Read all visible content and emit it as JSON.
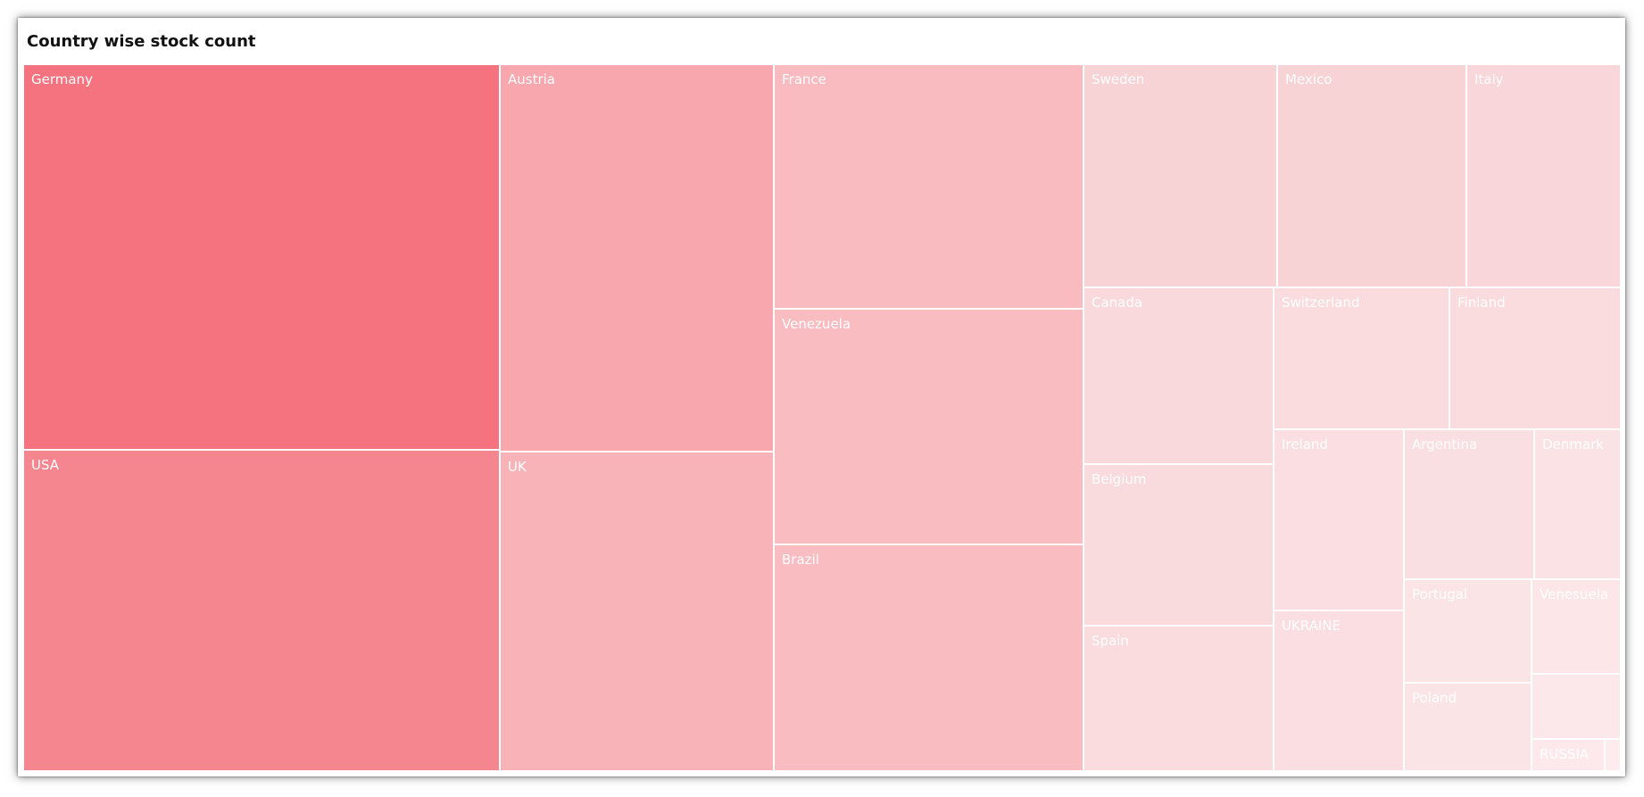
{
  "chart_data": {
    "type": "treemap",
    "title": "Country wise stock count",
    "label_color": "#ffffff",
    "items": [
      {
        "name": "Germany",
        "label": "Germany",
        "value": 1642,
        "color": "#f4737f"
      },
      {
        "name": "USA",
        "label": "USA",
        "value": 1414,
        "color": "#f58690"
      },
      {
        "name": "Austria",
        "label": "Austria",
        "value": 953,
        "color": "#f7a7ad"
      },
      {
        "name": "UK",
        "label": "UK",
        "value": 799,
        "color": "#f8b3b8"
      },
      {
        "name": "France",
        "label": "France",
        "value": 671,
        "color": "#f9bbc0"
      },
      {
        "name": "Venezuela",
        "label": "Venezuela",
        "value": 653,
        "color": "#f9bcc1"
      },
      {
        "name": "Brazil",
        "label": "Brazil",
        "value": 645,
        "color": "#f9bcc1"
      },
      {
        "name": "Sweden",
        "label": "Sweden",
        "value": 189,
        "color": "#f8d3d6"
      },
      {
        "name": "Mexico",
        "label": "Mexico",
        "value": 187,
        "color": "#f8d3d6"
      },
      {
        "name": "Italy",
        "label": "Italy",
        "value": 149,
        "color": "#f9d6d9"
      },
      {
        "name": "Canada",
        "label": "Canada",
        "value": 150,
        "color": "#f9d9dc"
      },
      {
        "name": "Switzerland",
        "label": "Switzerland",
        "value": 110,
        "color": "#fadcdf"
      },
      {
        "name": "Finland",
        "label": "Finland",
        "value": 108,
        "color": "#fadcdf"
      },
      {
        "name": "Belgium",
        "label": "Belgium",
        "value": 137,
        "color": "#f9dadd"
      },
      {
        "name": "Spain",
        "label": "Spain",
        "value": 127,
        "color": "#fadcdf"
      },
      {
        "name": "Ireland",
        "label": "Ireland",
        "value": 104,
        "color": "#fadee1"
      },
      {
        "name": "UKRAINE",
        "label": "UKRAINE",
        "value": 89,
        "color": "#fadee1"
      },
      {
        "name": "Argentina",
        "label": "Argentina",
        "value": 87,
        "color": "#fadfe2"
      },
      {
        "name": "Denmark",
        "label": "Denmark",
        "value": 55,
        "color": "#fbe3e5"
      },
      {
        "name": "Portugal",
        "label": "Portugal",
        "value": 58,
        "color": "#fbe4e6"
      },
      {
        "name": "Poland",
        "label": "Poland",
        "value": 49,
        "color": "#fbe4e6"
      },
      {
        "name": "Venesuela",
        "label": "Venesuela",
        "value": 35,
        "color": "#fce6e8"
      },
      {
        "name": "(unlabeled)",
        "label": "",
        "value": 24,
        "color": "#fce8ea"
      },
      {
        "name": "RUSSIA",
        "label": "RUSSIA",
        "value": 12,
        "color": "#fde9eb"
      },
      {
        "name": "(unlabeled-small)",
        "label": "",
        "value": 3,
        "color": "#fdebed"
      }
    ]
  }
}
